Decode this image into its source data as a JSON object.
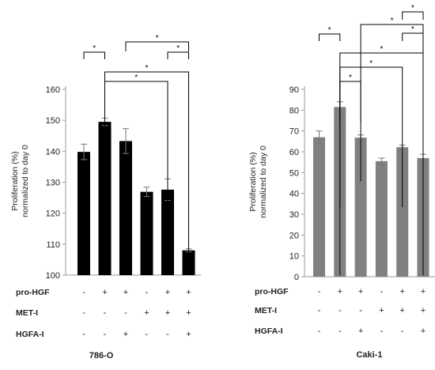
{
  "chart_data": [
    {
      "type": "bar",
      "title": "786-O",
      "ylabel": [
        "Proliferation (%)",
        "normalized to day 0"
      ],
      "ylim": [
        100,
        160
      ],
      "yticks": [
        100,
        110,
        120,
        130,
        140,
        150,
        160
      ],
      "bar_color": "#000000",
      "values": [
        139.8,
        149.5,
        143.3,
        126.9,
        127.6,
        108.0
      ],
      "errors": [
        2.5,
        1.2,
        4.0,
        1.5,
        3.5,
        0.5
      ],
      "conditions": [
        {
          "label": "pro-HGF",
          "signs": [
            "-",
            "+",
            "+",
            "-",
            "+",
            "+"
          ]
        },
        {
          "label": "MET-I",
          "signs": [
            "-",
            "-",
            "-",
            "+",
            "+",
            "+"
          ]
        },
        {
          "label": "HGFA-I",
          "signs": [
            "-",
            "-",
            "+",
            "-",
            "-",
            "+"
          ]
        }
      ],
      "significance": [
        {
          "from": 0,
          "to": 1,
          "label": "*"
        },
        {
          "from": 2,
          "to": 5,
          "label": "*"
        },
        {
          "from": 4,
          "to": 5,
          "label": "*"
        },
        {
          "from": 1,
          "to": 5,
          "label": "*"
        },
        {
          "from": 1,
          "to": 4,
          "label": "*"
        }
      ]
    },
    {
      "type": "bar",
      "title": "Caki-1",
      "ylabel": [
        "Proliferation (%)",
        "normalized to day 0"
      ],
      "ylim": [
        0,
        90
      ],
      "yticks": [
        0,
        10,
        20,
        30,
        40,
        50,
        60,
        70,
        80,
        90
      ],
      "bar_color": "#808080",
      "values": [
        67.0,
        81.5,
        66.8,
        55.5,
        62.2,
        57.0
      ],
      "errors": [
        3.0,
        2.5,
        1.3,
        1.5,
        1.0,
        1.8
      ],
      "conditions": [
        {
          "label": "pro-HGF",
          "signs": [
            "-",
            "+",
            "+",
            "-",
            "+",
            "+"
          ]
        },
        {
          "label": "MET-I",
          "signs": [
            "-",
            "-",
            "-",
            "+",
            "+",
            "+"
          ]
        },
        {
          "label": "HGFA-I",
          "signs": [
            "-",
            "-",
            "+",
            "-",
            "-",
            "+"
          ]
        }
      ],
      "significance": [
        {
          "from": 0,
          "to": 1,
          "label": "*"
        },
        {
          "from": 4,
          "to": 5,
          "label": "*"
        },
        {
          "from": 2,
          "to": 5,
          "label": "*"
        },
        {
          "from": 4,
          "to": 5,
          "label": "*"
        },
        {
          "from": 1,
          "to": 5,
          "label": "*"
        },
        {
          "from": 1,
          "to": 4,
          "label": "*"
        },
        {
          "from": 1,
          "to": 2,
          "label": "*"
        }
      ]
    }
  ]
}
